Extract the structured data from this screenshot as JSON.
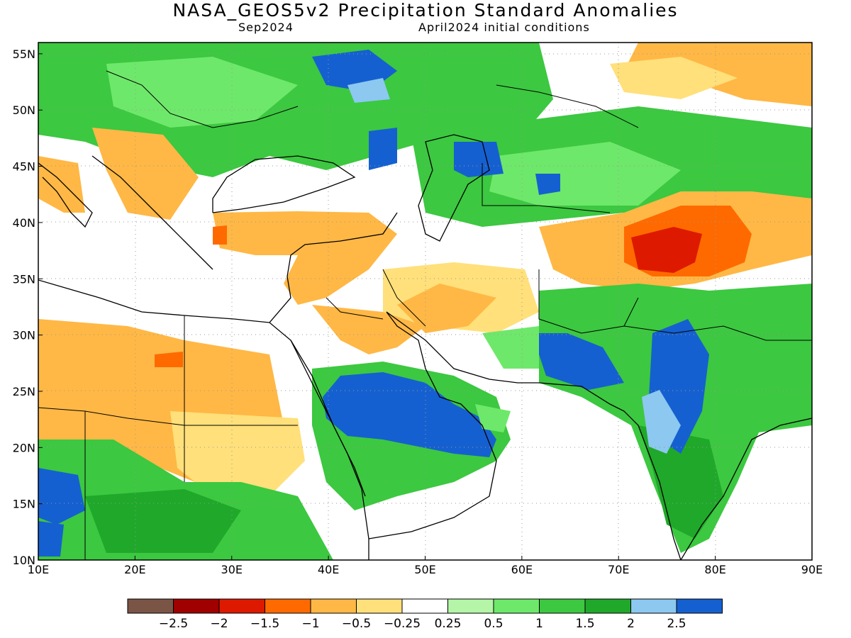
{
  "title": "NASA_GEOS5v2 Precipitation Standard Anomalies",
  "subtitle_left": "Sep2024",
  "subtitle_right": "April2024 initial conditions",
  "map": {
    "lon_range": [
      10,
      90
    ],
    "lat_range": [
      10,
      56
    ],
    "x_ticks": [
      "10E",
      "20E",
      "30E",
      "40E",
      "50E",
      "60E",
      "70E",
      "80E",
      "90E"
    ],
    "y_ticks": [
      "55N",
      "50N",
      "45N",
      "40N",
      "35N",
      "30N",
      "25N",
      "20N",
      "15N",
      "10N"
    ],
    "grid": "dotted"
  },
  "colorbar": {
    "colors": [
      "#7a5545",
      "#a00000",
      "#dd1a00",
      "#ff6a00",
      "#ffb845",
      "#ffe07a",
      "#ffffff",
      "#b4f5a8",
      "#6ee86a",
      "#3cc840",
      "#20a82a",
      "#8cc8f0",
      "#1560d0"
    ],
    "labels": [
      "-2.5",
      "-2",
      "-1.5",
      "-1",
      "-0.5",
      "-0.25",
      "0.25",
      "0.5",
      "1",
      "1.5",
      "2",
      "2.5"
    ]
  }
}
